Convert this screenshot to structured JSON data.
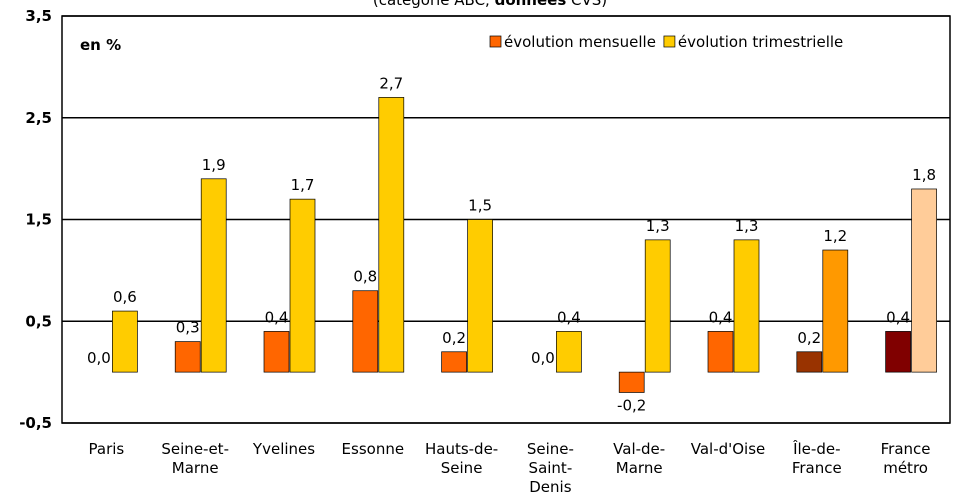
{
  "chart_data": {
    "type": "bar",
    "subtitle_parts": [
      "(catégorie ABC, ",
      "données",
      " CVS)"
    ],
    "unit_label": "en %",
    "categories": [
      [
        "Paris"
      ],
      [
        "Seine-et-",
        "Marne"
      ],
      [
        "Yvelines"
      ],
      [
        "Essonne"
      ],
      [
        "Hauts-de-",
        "Seine"
      ],
      [
        "Seine-",
        "Saint-",
        "Denis"
      ],
      [
        "Val-de-",
        "Marne"
      ],
      [
        "Val-d'Oise"
      ],
      [
        "Île-de-",
        "France"
      ],
      [
        "France",
        "métro"
      ]
    ],
    "series": [
      {
        "name": "évolution mensuelle",
        "color": "#ff6600",
        "colors": [
          "#ff6600",
          "#ff6600",
          "#ff6600",
          "#ff6600",
          "#ff6600",
          "#ff6600",
          "#ff6600",
          "#ff6600",
          "#993300",
          "#800000"
        ],
        "values": [
          0.0,
          0.3,
          0.4,
          0.8,
          0.2,
          0.0,
          -0.2,
          0.4,
          0.2,
          0.4
        ],
        "value_labels": [
          "0,0",
          "0,3",
          "0,4",
          "0,8",
          "0,2",
          "0,0",
          "-0,2",
          "0,4",
          "0,2",
          "0,4"
        ]
      },
      {
        "name": "évolution trimestrielle",
        "color": "#ffcc00",
        "colors": [
          "#ffcc00",
          "#ffcc00",
          "#ffcc00",
          "#ffcc00",
          "#ffcc00",
          "#ffcc00",
          "#ffcc00",
          "#ffcc00",
          "#ff9900",
          "#ffcc99"
        ],
        "values": [
          0.6,
          1.9,
          1.7,
          2.7,
          1.5,
          0.4,
          1.3,
          1.3,
          1.2,
          1.8
        ],
        "value_labels": [
          "0,6",
          "1,9",
          "1,7",
          "2,7",
          "1,5",
          "0,4",
          "1,3",
          "1,3",
          "1,2",
          "1,8"
        ]
      }
    ],
    "ylim": [
      -0.5,
      3.5
    ],
    "yticks": [
      {
        "value": -0.5,
        "label": "-0,5"
      },
      {
        "value": 0.5,
        "label": "0,5"
      },
      {
        "value": 1.5,
        "label": "1,5"
      },
      {
        "value": 2.5,
        "label": "2,5"
      },
      {
        "value": 3.5,
        "label": "3,5"
      }
    ],
    "grid": true,
    "legend": "top-right"
  }
}
